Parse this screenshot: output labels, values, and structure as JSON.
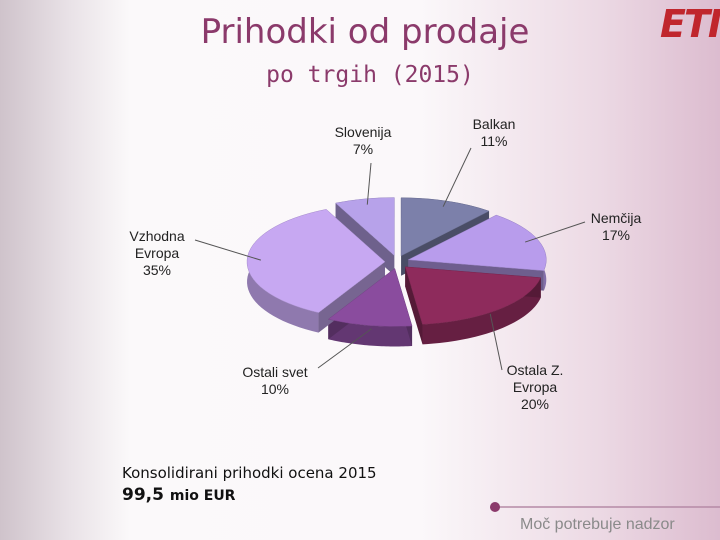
{
  "slide": {
    "title": "Prihodki od prodaje",
    "subtitle": "po trgih (2015)",
    "logo": "ETI",
    "note": "Konsolidirani prihodki ocena 2015",
    "amount": "99,5",
    "amount_unit": "mio EUR",
    "slogan": "Moč potrebuje nadzor"
  },
  "chart_data": {
    "type": "pie3d",
    "categories": [
      "Balkan",
      "Nemčija",
      "Ostala Z. Evropa",
      "Ostali svet",
      "Vzhodna Evropa",
      "Slovenija"
    ],
    "values": [
      11,
      17,
      20,
      10,
      35,
      7
    ],
    "value_labels": [
      "11%",
      "17%",
      "20%",
      "10%",
      "35%",
      "7%"
    ],
    "colors": [
      "#7c80aa",
      "#b89cec",
      "#8e2b5c",
      "#8a4c9e",
      "#c7a8f2",
      "#b7a2ea"
    ]
  }
}
